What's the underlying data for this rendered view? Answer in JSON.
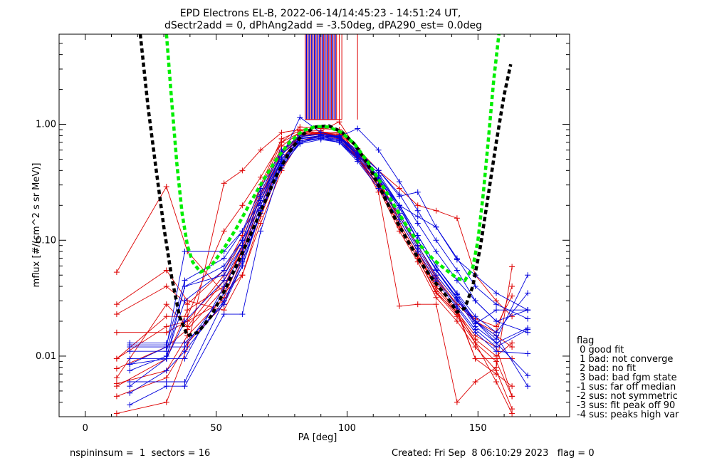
{
  "chart_data": {
    "type": "line",
    "title": "EPD Electrons EL-B, 2022-06-14/14:45:23 - 14:51:24 UT,",
    "subtitle": "dSectr2add = 0, dPhAng2add = -3.50deg, dPA290_est=   0.0deg",
    "xlabel": "PA [deg]",
    "ylabel": "mflux [#/(cm^2 s sr MeV)]",
    "xlim": [
      -10,
      185
    ],
    "ylim": [
      0.003,
      6
    ],
    "ylog": true,
    "xticks": [
      0,
      50,
      100,
      150
    ],
    "yticks": [
      {
        "v": 0.01,
        "label": "0.01"
      },
      {
        "v": 0.1,
        "label": "0.10"
      },
      {
        "v": 1.0,
        "label": "1.00"
      }
    ],
    "fits": [
      {
        "color": "#000000",
        "style": "dashed-thick",
        "x": [
          21,
          24,
          27,
          30,
          33,
          36,
          39,
          43,
          48,
          53,
          58,
          63,
          68,
          73,
          78,
          83,
          88,
          93,
          98,
          103,
          108,
          113,
          118,
          123,
          128,
          133,
          138,
          142,
          145,
          148,
          151,
          154,
          157,
          160,
          162.5
        ],
        "y": [
          6.0,
          1.4,
          0.42,
          0.13,
          0.048,
          0.022,
          0.015,
          0.016,
          0.022,
          0.036,
          0.062,
          0.11,
          0.2,
          0.36,
          0.58,
          0.82,
          0.95,
          0.97,
          0.86,
          0.67,
          0.45,
          0.27,
          0.16,
          0.1,
          0.065,
          0.045,
          0.033,
          0.024,
          0.026,
          0.04,
          0.09,
          0.25,
          0.7,
          1.8,
          3.3
        ]
      },
      {
        "color": "#00ee00",
        "style": "dashed-thick",
        "x": [
          31,
          33,
          35,
          37,
          39,
          41,
          44,
          48,
          53,
          58,
          63,
          68,
          73,
          78,
          83,
          88,
          93,
          98,
          103,
          108,
          113,
          118,
          123,
          128,
          133,
          138,
          142,
          145,
          148,
          150,
          152,
          154,
          156,
          158
        ],
        "y": [
          6.0,
          1.6,
          0.45,
          0.17,
          0.09,
          0.065,
          0.053,
          0.06,
          0.085,
          0.13,
          0.21,
          0.33,
          0.5,
          0.7,
          0.88,
          0.96,
          0.95,
          0.85,
          0.67,
          0.47,
          0.31,
          0.2,
          0.13,
          0.09,
          0.068,
          0.055,
          0.047,
          0.045,
          0.058,
          0.1,
          0.25,
          0.75,
          2.4,
          6.0
        ]
      }
    ],
    "series_red": [
      {
        "x": [
          12,
          31,
          39,
          53,
          60,
          67,
          75,
          82,
          90,
          97,
          104,
          112,
          120,
          127,
          134,
          142,
          149,
          157,
          163
        ],
        "y": [
          0.053,
          0.29,
          0.08,
          0.035,
          0.05,
          0.14,
          0.4,
          0.72,
          0.8,
          0.75,
          0.5,
          0.3,
          0.13,
          0.07,
          0.035,
          0.024,
          0.0095,
          0.007,
          0.0055
        ]
      },
      {
        "x": [
          12,
          31,
          39,
          53,
          60,
          67,
          75,
          82,
          90,
          97,
          104,
          112,
          120,
          127,
          134,
          142,
          149,
          157,
          163
        ],
        "y": [
          0.028,
          0.055,
          0.03,
          0.025,
          0.05,
          0.16,
          0.45,
          0.78,
          0.85,
          0.8,
          0.55,
          0.33,
          0.15,
          0.08,
          0.04,
          0.025,
          0.0095,
          0.0095,
          0.0095
        ]
      },
      {
        "x": [
          12,
          31,
          39,
          53,
          60,
          67,
          75,
          82,
          90,
          97,
          104,
          112,
          120,
          127,
          134,
          142,
          149,
          157,
          163
        ],
        "y": [
          0.0095,
          0.018,
          0.02,
          0.05,
          0.1,
          0.28,
          0.7,
          0.95,
          0.92,
          0.9,
          0.55,
          0.26,
          0.027,
          0.028,
          0.028,
          0.004,
          0.006,
          0.008,
          0.059
        ]
      },
      {
        "x": [
          12,
          31,
          39,
          53,
          60,
          67,
          75,
          82,
          90,
          97,
          104,
          112,
          120,
          127,
          134,
          142,
          149,
          157,
          163
        ],
        "y": [
          0.0055,
          0.0095,
          0.025,
          0.04,
          0.09,
          0.25,
          0.65,
          0.85,
          0.82,
          0.78,
          0.5,
          0.3,
          0.14,
          0.075,
          0.04,
          0.025,
          0.013,
          0.006,
          0.0032
        ]
      },
      {
        "x": [
          12,
          31,
          39,
          53,
          60,
          67,
          75,
          82,
          90,
          97,
          104,
          112,
          120,
          127,
          134,
          142,
          149,
          157,
          163
        ],
        "y": [
          0.016,
          0.016,
          0.02,
          0.03,
          0.06,
          0.18,
          0.5,
          0.8,
          0.85,
          0.85,
          0.62,
          0.4,
          0.28,
          0.2,
          0.18,
          0.155,
          0.05,
          0.03,
          0.022
        ]
      },
      {
        "x": [
          12,
          31,
          39,
          53,
          60,
          67,
          75,
          82,
          90,
          97,
          104,
          112,
          120,
          127,
          134,
          142,
          149,
          157,
          163
        ],
        "y": [
          0.0032,
          0.004,
          0.012,
          0.31,
          0.4,
          0.6,
          0.85,
          0.9,
          0.88,
          1.05,
          0.6,
          0.32,
          0.15,
          0.08,
          0.045,
          0.028,
          0.02,
          0.015,
          0.012
        ]
      },
      {
        "x": [
          12,
          31,
          39,
          53,
          60,
          67,
          75,
          82,
          90,
          97,
          104,
          112,
          120,
          127,
          134,
          142,
          149,
          157,
          163
        ],
        "y": [
          0.0065,
          0.028,
          0.018,
          0.045,
          0.08,
          0.22,
          0.58,
          0.82,
          0.86,
          0.8,
          0.52,
          0.3,
          0.13,
          0.07,
          0.035,
          0.022,
          0.013,
          0.009,
          0.0045
        ]
      },
      {
        "x": [
          12,
          31,
          39,
          53,
          60,
          67,
          75,
          82,
          90,
          97,
          104,
          112,
          120,
          127,
          134,
          142,
          149,
          157,
          163
        ],
        "y": [
          0.0045,
          0.0065,
          0.013,
          0.028,
          0.07,
          0.2,
          0.55,
          0.78,
          0.82,
          0.78,
          0.5,
          0.28,
          0.12,
          0.065,
          0.032,
          0.02,
          0.012,
          0.0075,
          0.0035
        ]
      },
      {
        "x": [
          12,
          31,
          39,
          53,
          60,
          67,
          75,
          82,
          90,
          97,
          104,
          112,
          120,
          127,
          134,
          142,
          149,
          157,
          163
        ],
        "y": [
          0.023,
          0.04,
          0.028,
          0.055,
          0.11,
          0.3,
          0.75,
          0.88,
          0.85,
          0.82,
          0.55,
          0.32,
          0.16,
          0.09,
          0.05,
          0.03,
          0.021,
          0.018,
          0.033
        ]
      },
      {
        "x": [
          12,
          31,
          39,
          53,
          60,
          67,
          75,
          82,
          90,
          97,
          104,
          112,
          120,
          127,
          134,
          142,
          149,
          157,
          163
        ],
        "y": [
          0.0078,
          0.012,
          0.017,
          0.038,
          0.085,
          0.24,
          0.6,
          0.8,
          0.84,
          0.8,
          0.53,
          0.3,
          0.14,
          0.075,
          0.038,
          0.024,
          0.015,
          0.012,
          0.0045
        ]
      },
      {
        "x": [
          12,
          31,
          39,
          53,
          60,
          67,
          75,
          82,
          90,
          97,
          104,
          112,
          120,
          127,
          134,
          142,
          149,
          157,
          163
        ],
        "y": [
          0.0058,
          0.0075,
          0.015,
          0.032,
          0.075,
          0.22,
          0.57,
          0.8,
          0.83,
          0.79,
          0.52,
          0.29,
          0.13,
          0.07,
          0.036,
          0.023,
          0.014,
          0.01,
          0.013
        ]
      },
      {
        "x": [
          12,
          31,
          39,
          53,
          60,
          67,
          75,
          82,
          90,
          97,
          104,
          112,
          120,
          127,
          134,
          142,
          149,
          157,
          163
        ],
        "y": [
          0.0095,
          0.022,
          0.022,
          0.12,
          0.2,
          0.35,
          0.7,
          0.85,
          0.86,
          0.84,
          0.57,
          0.33,
          0.16,
          0.09,
          0.048,
          0.028,
          0.02,
          0.016,
          0.04
        ]
      }
    ],
    "series_blue": [
      {
        "x": [
          17,
          31,
          38,
          53,
          60,
          67,
          75,
          82,
          90,
          97,
          104,
          112,
          120,
          127,
          134,
          142,
          149,
          157,
          169
        ],
        "y": [
          0.012,
          0.012,
          0.08,
          0.08,
          0.12,
          0.22,
          0.5,
          0.75,
          0.78,
          0.72,
          0.52,
          0.33,
          0.2,
          0.16,
          0.13,
          0.068,
          0.05,
          0.035,
          0.025
        ]
      },
      {
        "x": [
          17,
          31,
          38,
          53,
          60,
          67,
          75,
          82,
          90,
          97,
          104,
          112,
          120,
          127,
          134,
          142,
          149,
          157,
          169
        ],
        "y": [
          0.0038,
          0.0055,
          0.0055,
          0.023,
          0.023,
          0.12,
          0.45,
          0.75,
          0.8,
          0.78,
          0.6,
          0.4,
          0.25,
          0.14,
          0.08,
          0.045,
          0.03,
          0.02,
          0.016
        ]
      },
      {
        "x": [
          17,
          31,
          38,
          53,
          60,
          67,
          75,
          82,
          90,
          97,
          104,
          112,
          120,
          127,
          134,
          142,
          149,
          157,
          169
        ],
        "y": [
          0.013,
          0.013,
          0.013,
          0.028,
          0.06,
          0.18,
          0.42,
          0.7,
          0.76,
          0.7,
          0.5,
          0.3,
          0.17,
          0.09,
          0.05,
          0.03,
          0.02,
          0.014,
          0.05
        ]
      },
      {
        "x": [
          17,
          31,
          38,
          53,
          60,
          67,
          75,
          82,
          90,
          97,
          104,
          112,
          120,
          127,
          134,
          142,
          149,
          157,
          169
        ],
        "y": [
          0.0055,
          0.0095,
          0.04,
          0.06,
          0.1,
          0.2,
          0.48,
          0.72,
          0.76,
          0.8,
          0.55,
          0.38,
          0.2,
          0.11,
          0.06,
          0.035,
          0.022,
          0.016,
          0.035
        ]
      },
      {
        "x": [
          17,
          31,
          38,
          53,
          60,
          67,
          75,
          82,
          90,
          97,
          104,
          112,
          120,
          127,
          134,
          142,
          149,
          157,
          169
        ],
        "y": [
          0.0085,
          0.012,
          0.012,
          0.035,
          0.07,
          0.2,
          0.5,
          0.72,
          0.78,
          0.74,
          0.52,
          0.33,
          0.19,
          0.1,
          0.055,
          0.032,
          0.02,
          0.015,
          0.0055
        ]
      },
      {
        "x": [
          17,
          31,
          38,
          53,
          60,
          67,
          75,
          82,
          90,
          97,
          104,
          112,
          120,
          127,
          134,
          142,
          149,
          157,
          169
        ],
        "y": [
          0.0095,
          0.0095,
          0.0095,
          0.04,
          0.08,
          0.22,
          0.55,
          0.75,
          0.8,
          0.76,
          0.55,
          0.36,
          0.2,
          0.11,
          0.06,
          0.034,
          0.02,
          0.013,
          0.0068
        ]
      },
      {
        "x": [
          17,
          31,
          38,
          53,
          60,
          67,
          75,
          82,
          90,
          97,
          104,
          112,
          120,
          127,
          134,
          142,
          149,
          157,
          169
        ],
        "y": [
          0.011,
          0.011,
          0.04,
          0.05,
          0.09,
          0.24,
          0.52,
          1.15,
          0.85,
          0.78,
          0.92,
          0.6,
          0.32,
          0.18,
          0.1,
          0.055,
          0.03,
          0.02,
          0.025
        ]
      },
      {
        "x": [
          17,
          31,
          38,
          53,
          60,
          67,
          75,
          82,
          90,
          97,
          104,
          112,
          120,
          127,
          134,
          142,
          149,
          157,
          169
        ],
        "y": [
          0.006,
          0.006,
          0.006,
          0.03,
          0.065,
          0.18,
          0.46,
          0.7,
          0.76,
          0.72,
          0.5,
          0.3,
          0.16,
          0.085,
          0.047,
          0.027,
          0.017,
          0.012,
          0.017
        ]
      },
      {
        "x": [
          17,
          31,
          38,
          53,
          60,
          67,
          75,
          82,
          90,
          97,
          104,
          112,
          120,
          127,
          134,
          142,
          149,
          157,
          169
        ],
        "y": [
          0.0125,
          0.0125,
          0.045,
          0.07,
          0.12,
          0.28,
          0.6,
          0.8,
          0.82,
          0.78,
          0.58,
          0.4,
          0.24,
          0.26,
          0.13,
          0.07,
          0.04,
          0.028,
          0.021
        ]
      },
      {
        "x": [
          17,
          31,
          38,
          53,
          60,
          67,
          75,
          82,
          90,
          97,
          104,
          112,
          120,
          127,
          134,
          142,
          149,
          157,
          169
        ],
        "y": [
          0.0048,
          0.0075,
          0.011,
          0.03,
          0.06,
          0.17,
          0.44,
          0.68,
          0.74,
          0.7,
          0.48,
          0.28,
          0.15,
          0.08,
          0.044,
          0.026,
          0.016,
          0.011,
          0.0105
        ]
      },
      {
        "x": [
          17,
          31,
          38,
          53,
          60,
          67,
          75,
          82,
          90,
          97,
          104,
          112,
          120,
          127,
          134,
          142,
          149,
          157,
          169
        ],
        "y": [
          0.0085,
          0.0095,
          0.02,
          0.045,
          0.09,
          0.24,
          0.55,
          0.76,
          0.8,
          0.76,
          0.54,
          0.34,
          0.19,
          0.1,
          0.055,
          0.031,
          0.018,
          0.013,
          0.0175
        ]
      },
      {
        "x": [
          17,
          31,
          38,
          53,
          60,
          67,
          75,
          82,
          90,
          97,
          104,
          112,
          120,
          127,
          134,
          142,
          149,
          157,
          169
        ],
        "y": [
          0.0075,
          0.01,
          0.03,
          0.055,
          0.1,
          0.26,
          0.58,
          0.78,
          0.82,
          0.77,
          0.56,
          0.35,
          0.2,
          0.1,
          0.056,
          0.032,
          0.019,
          0.025,
          0.025
        ]
      }
    ],
    "spikes": {
      "x_red": [
        84,
        85,
        86,
        87,
        88,
        89,
        90,
        91,
        92,
        93,
        94,
        95,
        96,
        97,
        98,
        104
      ],
      "x_blue": [
        84.5,
        85.5,
        86.5,
        87.5,
        88.5,
        89.5,
        90.5,
        91.5,
        92.5,
        93.5,
        94.5,
        95.5
      ],
      "y_bottom": 1.1,
      "y_top": 6.0,
      "frame_x": [
        84,
        98
      ]
    },
    "legend": {
      "title": "flag",
      "entries": [
        " 0 good fit",
        " 1 bad: not converge",
        " 2 bad: no fit",
        " 3 bad: bad fgm state",
        "-1 sus: far off median",
        "-2 sus: not symmetric",
        "-3 sus: fit peak off 90",
        "-4 sus: peaks high var"
      ]
    },
    "grid": false,
    "legend_position": "right"
  },
  "footer": {
    "left": "nspininsum =  1  sectors = 16",
    "right": "Created: Fri Sep  8 06:10:29 2023   flag = 0"
  },
  "colors": {
    "red_series": "#dd0000",
    "blue_series": "#0000dd",
    "fit_black": "#000000",
    "fit_green": "#00ee00"
  }
}
